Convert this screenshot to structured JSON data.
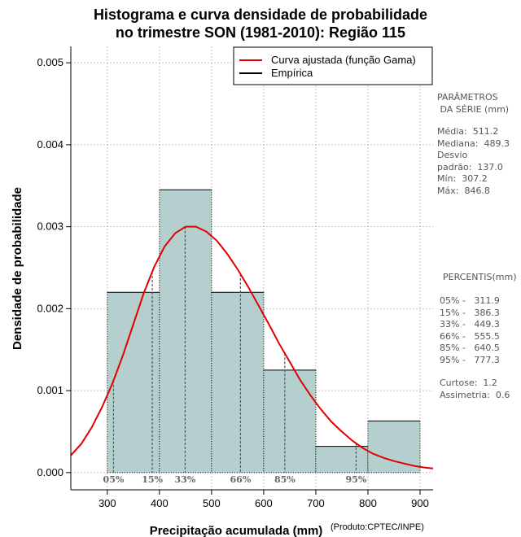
{
  "chart_data": {
    "type": "histogram",
    "title_line1": "Histograma e curva densidade de probabilidade",
    "title_line2": "no trimestre SON (1981-2010): Região 115",
    "xlabel": "Precipitação acumulada (mm)",
    "ylabel": "Densidade de probabilidade",
    "credit": "(Produto:CPTEC/INPE)",
    "xlim": [
      230,
      925
    ],
    "ylim": [
      -0.00021,
      0.0052
    ],
    "x_ticks": [
      300,
      400,
      500,
      600,
      700,
      800,
      900
    ],
    "y_ticks": [
      0.0,
      0.001,
      0.002,
      0.003,
      0.004,
      0.005
    ],
    "y_tick_labels": [
      "0.000",
      "0.001",
      "0.002",
      "0.003",
      "0.004",
      "0.005"
    ],
    "grid": true,
    "bins": [
      {
        "start": 300,
        "end": 400,
        "density": 0.0022
      },
      {
        "start": 400,
        "end": 500,
        "density": 0.00345
      },
      {
        "start": 500,
        "end": 600,
        "density": 0.0022
      },
      {
        "start": 600,
        "end": 700,
        "density": 0.00125
      },
      {
        "start": 700,
        "end": 800,
        "density": 0.00032
      },
      {
        "start": 800,
        "end": 900,
        "density": 0.00063
      }
    ],
    "gamma_curve": {
      "name": "Curva ajustada (função Gama)",
      "color": "#e00000",
      "x": [
        230,
        250,
        270,
        290,
        310,
        330,
        350,
        370,
        390,
        410,
        430,
        450,
        470,
        490,
        510,
        530,
        550,
        570,
        590,
        610,
        630,
        650,
        670,
        690,
        710,
        730,
        750,
        770,
        790,
        810,
        830,
        850,
        870,
        890,
        910,
        925
      ],
      "y": [
        0.00021,
        0.00035,
        0.00055,
        0.0008,
        0.00109,
        0.00143,
        0.00181,
        0.00219,
        0.00251,
        0.00276,
        0.00292,
        0.003,
        0.003,
        0.00294,
        0.00283,
        0.00267,
        0.00248,
        0.00227,
        0.00204,
        0.00181,
        0.00157,
        0.00135,
        0.00113,
        0.00094,
        0.00077,
        0.00062,
        0.0005,
        0.00039,
        0.0003,
        0.00023,
        0.00018,
        0.00014,
        0.00011,
        8e-05,
        6e-05,
        5e-05
      ]
    },
    "legend": [
      {
        "label": "Curva ajustada (função Gama)",
        "color": "#e00000"
      },
      {
        "label": "Empírica",
        "color": "#000000"
      }
    ],
    "percentile_markers": [
      {
        "label": "05%",
        "value": 311.9
      },
      {
        "label": "15%",
        "value": 386.3
      },
      {
        "label": "33%",
        "value": 449.3
      },
      {
        "label": "66%",
        "value": 555.5
      },
      {
        "label": "85%",
        "value": 640.5
      },
      {
        "label": "95%",
        "value": 777.3
      }
    ],
    "bar_color": "#b5cfcf"
  },
  "side_panel": {
    "params_title_1": "PARÂMETROS",
    "params_title_2": " DA SÉRIE (mm)",
    "stats": "Média:  511.2\nMediana:  489.3\nDesvio\npadrão:  137.0\nMín:  307.2\nMáx:  846.8",
    "percentis_title": "PERCENTIS(mm)",
    "percentis": "05% -   311.9\n15% -   386.3\n33% -   449.3\n66% -   555.5\n85% -   640.5\n95% -   777.3",
    "moments": "Curtose:  1.2\nAssimetria:  0.6"
  }
}
